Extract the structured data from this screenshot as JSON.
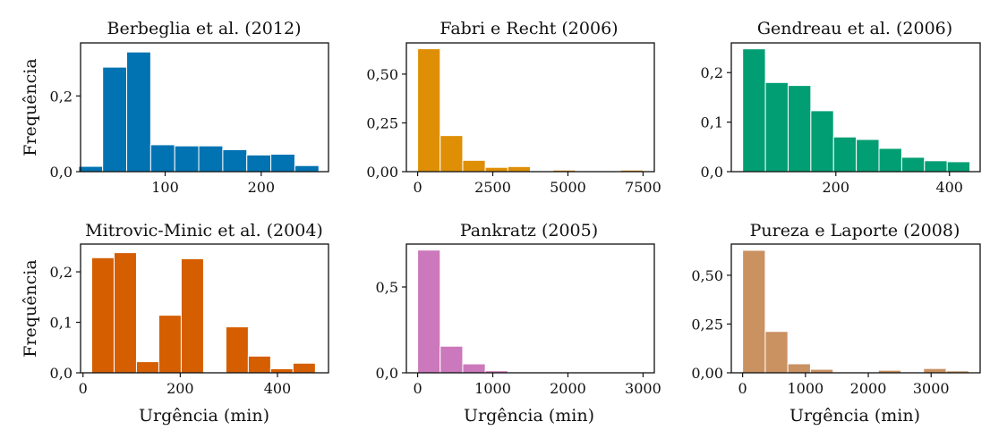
{
  "y_axis_label": "Frequência",
  "x_axis_label": "Urgência (min)",
  "chart_data": [
    {
      "type": "bar",
      "title": "Berbeglia et al. (2012)",
      "color": "#0173b2",
      "xlim": [
        12,
        270
      ],
      "ylim": [
        0,
        0.34
      ],
      "xticks": [
        {
          "v": 100,
          "label": "100"
        },
        {
          "v": 200,
          "label": "200"
        }
      ],
      "yticks": [
        {
          "v": 0,
          "label": "0,0"
        },
        {
          "v": 0.2,
          "label": "0,2"
        }
      ],
      "bins": [
        {
          "x0": 10,
          "x1": 35,
          "y": 0.014
        },
        {
          "x0": 35,
          "x1": 60,
          "y": 0.276
        },
        {
          "x0": 60,
          "x1": 85,
          "y": 0.316
        },
        {
          "x0": 85,
          "x1": 110,
          "y": 0.071
        },
        {
          "x0": 110,
          "x1": 135,
          "y": 0.068
        },
        {
          "x0": 135,
          "x1": 160,
          "y": 0.068
        },
        {
          "x0": 160,
          "x1": 185,
          "y": 0.058
        },
        {
          "x0": 185,
          "x1": 210,
          "y": 0.044
        },
        {
          "x0": 210,
          "x1": 235,
          "y": 0.046
        },
        {
          "x0": 235,
          "x1": 260,
          "y": 0.016
        }
      ]
    },
    {
      "type": "bar",
      "title": "Fabri e Recht (2006)",
      "color": "#de8f05",
      "xlim": [
        -375,
        7875
      ],
      "ylim": [
        0,
        0.66
      ],
      "xticks": [
        {
          "v": 0,
          "label": "0"
        },
        {
          "v": 2500,
          "label": "2500"
        },
        {
          "v": 5000,
          "label": "5000"
        },
        {
          "v": 7500,
          "label": "7500"
        }
      ],
      "yticks": [
        {
          "v": 0,
          "label": "0,00"
        },
        {
          "v": 0.25,
          "label": "0,25"
        },
        {
          "v": 0.5,
          "label": "0,50"
        }
      ],
      "bins": [
        {
          "x0": 0,
          "x1": 750,
          "y": 0.63
        },
        {
          "x0": 750,
          "x1": 1500,
          "y": 0.185
        },
        {
          "x0": 1500,
          "x1": 2250,
          "y": 0.058
        },
        {
          "x0": 2250,
          "x1": 3000,
          "y": 0.022
        },
        {
          "x0": 3000,
          "x1": 3750,
          "y": 0.026
        },
        {
          "x0": 3750,
          "x1": 4500,
          "y": 0
        },
        {
          "x0": 4500,
          "x1": 5250,
          "y": 0.008
        },
        {
          "x0": 5250,
          "x1": 6000,
          "y": 0
        },
        {
          "x0": 6000,
          "x1": 6750,
          "y": 0
        },
        {
          "x0": 6750,
          "x1": 7500,
          "y": 0.008
        }
      ]
    },
    {
      "type": "bar",
      "title": "Gendreau et al. (2006)",
      "color": "#029e73",
      "xlim": [
        16,
        454
      ],
      "ylim": [
        0,
        0.26
      ],
      "xticks": [
        {
          "v": 200,
          "label": "200"
        },
        {
          "v": 400,
          "label": "400"
        }
      ],
      "yticks": [
        {
          "v": 0,
          "label": "0,0"
        },
        {
          "v": 0.1,
          "label": "0,1"
        },
        {
          "v": 0.2,
          "label": "0,2"
        }
      ],
      "bins": [
        {
          "x0": 36,
          "x1": 76,
          "y": 0.248
        },
        {
          "x0": 76,
          "x1": 116,
          "y": 0.18
        },
        {
          "x0": 116,
          "x1": 156,
          "y": 0.174
        },
        {
          "x0": 156,
          "x1": 196,
          "y": 0.123
        },
        {
          "x0": 196,
          "x1": 236,
          "y": 0.07
        },
        {
          "x0": 236,
          "x1": 276,
          "y": 0.065
        },
        {
          "x0": 276,
          "x1": 316,
          "y": 0.047
        },
        {
          "x0": 316,
          "x1": 356,
          "y": 0.029
        },
        {
          "x0": 356,
          "x1": 396,
          "y": 0.022
        },
        {
          "x0": 396,
          "x1": 436,
          "y": 0.02
        }
      ]
    },
    {
      "type": "bar",
      "title": "Mitrovic-Minic et al. (2004)",
      "color": "#d55e00",
      "xlim": [
        -5,
        505
      ],
      "ylim": [
        0,
        0.255
      ],
      "xticks": [
        {
          "v": 0,
          "label": "0"
        },
        {
          "v": 200,
          "label": "200"
        },
        {
          "v": 400,
          "label": "400"
        }
      ],
      "yticks": [
        {
          "v": 0,
          "label": "0,0"
        },
        {
          "v": 0.1,
          "label": "0,1"
        },
        {
          "v": 0.2,
          "label": "0,2"
        }
      ],
      "bins": [
        {
          "x0": 18,
          "x1": 64,
          "y": 0.228
        },
        {
          "x0": 64,
          "x1": 110,
          "y": 0.238
        },
        {
          "x0": 110,
          "x1": 156,
          "y": 0.022
        },
        {
          "x0": 156,
          "x1": 202,
          "y": 0.114
        },
        {
          "x0": 202,
          "x1": 248,
          "y": 0.226
        },
        {
          "x0": 248,
          "x1": 294,
          "y": 0
        },
        {
          "x0": 294,
          "x1": 340,
          "y": 0.091
        },
        {
          "x0": 340,
          "x1": 386,
          "y": 0.033
        },
        {
          "x0": 386,
          "x1": 432,
          "y": 0.008
        },
        {
          "x0": 432,
          "x1": 478,
          "y": 0.019
        }
      ]
    },
    {
      "type": "bar",
      "title": "Pankratz (2005)",
      "color": "#cc78bc",
      "xlim": [
        -150,
        3150
      ],
      "ylim": [
        0,
        0.75
      ],
      "xticks": [
        {
          "v": 0,
          "label": "0"
        },
        {
          "v": 1000,
          "label": "1000"
        },
        {
          "v": 2000,
          "label": "2000"
        },
        {
          "v": 3000,
          "label": "3000"
        }
      ],
      "yticks": [
        {
          "v": 0,
          "label": "0,0"
        },
        {
          "v": 0.5,
          "label": "0,5"
        }
      ],
      "bins": [
        {
          "x0": 0,
          "x1": 300,
          "y": 0.715
        },
        {
          "x0": 300,
          "x1": 600,
          "y": 0.155
        },
        {
          "x0": 600,
          "x1": 900,
          "y": 0.052
        },
        {
          "x0": 900,
          "x1": 1200,
          "y": 0.012
        },
        {
          "x0": 1200,
          "x1": 1500,
          "y": 0.003
        },
        {
          "x0": 1500,
          "x1": 1800,
          "y": 0.003
        },
        {
          "x0": 1800,
          "x1": 2100,
          "y": 0.002
        },
        {
          "x0": 2100,
          "x1": 2400,
          "y": 0.002
        },
        {
          "x0": 2400,
          "x1": 2700,
          "y": 0.002
        },
        {
          "x0": 2700,
          "x1": 3000,
          "y": 0.002
        }
      ]
    },
    {
      "type": "bar",
      "title": "Pureza e Laporte (2008)",
      "color": "#ca9161",
      "xlim": [
        -180,
        3780
      ],
      "ylim": [
        0,
        0.66
      ],
      "xticks": [
        {
          "v": 0,
          "label": "0"
        },
        {
          "v": 1000,
          "label": "1000"
        },
        {
          "v": 2000,
          "label": "2000"
        },
        {
          "v": 3000,
          "label": "3000"
        }
      ],
      "yticks": [
        {
          "v": 0,
          "label": "0,00"
        },
        {
          "v": 0.25,
          "label": "0,25"
        },
        {
          "v": 0.5,
          "label": "0,50"
        }
      ],
      "bins": [
        {
          "x0": 0,
          "x1": 360,
          "y": 0.628
        },
        {
          "x0": 360,
          "x1": 720,
          "y": 0.212
        },
        {
          "x0": 720,
          "x1": 1080,
          "y": 0.046
        },
        {
          "x0": 1080,
          "x1": 1440,
          "y": 0.018
        },
        {
          "x0": 1440,
          "x1": 1800,
          "y": 0
        },
        {
          "x0": 1800,
          "x1": 2160,
          "y": 0
        },
        {
          "x0": 2160,
          "x1": 2520,
          "y": 0.013
        },
        {
          "x0": 2520,
          "x1": 2880,
          "y": 0
        },
        {
          "x0": 2880,
          "x1": 3240,
          "y": 0.022
        },
        {
          "x0": 3240,
          "x1": 3600,
          "y": 0.01
        }
      ]
    }
  ]
}
